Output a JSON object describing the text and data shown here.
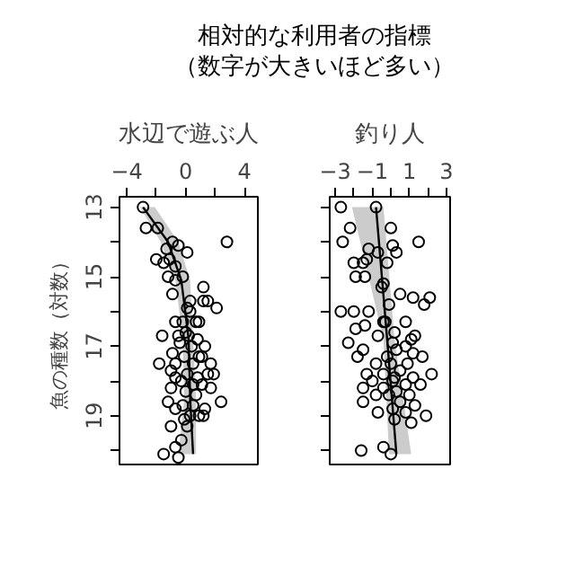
{
  "chart_data": [
    {
      "type": "other",
      "title": "相対的な利用者の指標",
      "subtitle": "（数字が大きいほど多い）"
    },
    {
      "type": "scatter",
      "orientation": "horizontal",
      "title": "水辺で遊ぶ人",
      "ylabel": "魚の種数（対数）",
      "grid": false,
      "xlim": [
        -4.5,
        4.9
      ],
      "xticks": [
        -4,
        {
          "value": -2,
          "label": null
        },
        0,
        {
          "value": 2,
          "label": null
        },
        4
      ],
      "ylim": [
        20.4,
        12.7
      ],
      "yticks": [
        13,
        {
          "value": 14,
          "label": null
        },
        15,
        {
          "value": 16,
          "label": null
        },
        17,
        {
          "value": 18,
          "label": null
        },
        19,
        {
          "value": 20,
          "label": null
        }
      ],
      "series": [
        {
          "type": "scatter",
          "marker": "circle",
          "color": "#000000",
          "values": [
            -2.9,
            -2.7,
            -1.9,
            -0.9,
            2.8,
            -1.3,
            -0.5,
            0.1,
            -2.0,
            -1.1,
            -1.5,
            -0.7,
            -0.2,
            -1.2,
            -0.7,
            1.2,
            -0.9,
            0.3,
            1.2,
            1.5,
            0.1,
            2.1,
            0.3,
            -0.2,
            0.7,
            -0.7,
            0.9,
            0,
            -0.5,
            -1.6,
            0.2,
            0.8,
            -0.4,
            0.4,
            1.3,
            -0.9,
            1.1,
            -0.1,
            0.9,
            -1.8,
            -0.7,
            0.5,
            1.7,
            -1.0,
            0.1,
            1.5,
            -0.7,
            1.9,
            0.8,
            -0.3,
            0.5,
            1.1,
            -1.0,
            1.7,
            0,
            0.7,
            2.4,
            -1.2,
            -0.2,
            0.5,
            1.3,
            -0.7,
            0.3,
            0.9,
            -0.1,
            1.2,
            -1.0,
            0.1,
            -0.3,
            -0.7,
            -1.5,
            -0.5
          ],
          "x": [
            13.0,
            13.6,
            13.6,
            14.0,
            14.0,
            14.2,
            14.1,
            14.3,
            14.5,
            14.5,
            14.6,
            14.7,
            15.0,
            15.0,
            15.1,
            15.3,
            15.5,
            15.7,
            15.7,
            15.7,
            15.9,
            15.9,
            16.0,
            16.3,
            16.3,
            16.3,
            16.3,
            16.6,
            16.7,
            16.7,
            16.7,
            16.8,
            16.9,
            17.0,
            17.0,
            17.2,
            17.3,
            17.3,
            17.3,
            17.5,
            17.5,
            17.5,
            17.5,
            17.7,
            17.8,
            17.8,
            17.9,
            17.8,
            17.9,
            18.0,
            18.1,
            18.1,
            18.2,
            18.2,
            18.3,
            18.4,
            18.6,
            18.6,
            18.7,
            18.7,
            18.8,
            18.8,
            19.0,
            19.0,
            19.1,
            19.0,
            19.3,
            19.3,
            19.7,
            19.9,
            20.1,
            20.2
          ]
        },
        {
          "type": "line",
          "marker": "none",
          "color": "#000000",
          "x": [
            13.0,
            14.0,
            15.1,
            16.8,
            18.5,
            20.1
          ],
          "values": [
            -2.9,
            -1.2,
            -0.3,
            0.2,
            0.3,
            0.5
          ],
          "lower": [
            -3.1,
            -1.7,
            -0.7,
            -0.2,
            -0.1,
            -0.5
          ],
          "upper": [
            -2.1,
            -0.5,
            0.3,
            0.5,
            0.7,
            0.7
          ]
        }
      ]
    },
    {
      "type": "scatter",
      "orientation": "horizontal",
      "title": "釣り人",
      "grid": false,
      "tick_labels": "x",
      "xlim": [
        -3.3,
        3.2
      ],
      "xticks": [
        -3,
        {
          "value": -2,
          "label": null
        },
        -1,
        {
          "value": 0,
          "label": null
        },
        1,
        {
          "value": 2,
          "label": null
        },
        3
      ],
      "ylim": [
        20.4,
        12.7
      ],
      "yticks": [
        13,
        {
          "value": 14,
          "label": null
        },
        15,
        {
          "value": 16,
          "label": null
        },
        17,
        {
          "value": 18,
          "label": null
        },
        19,
        {
          "value": 20,
          "label": null
        }
      ],
      "series": [
        {
          "type": "scatter",
          "marker": "circle",
          "color": "#000000",
          "values": [
            -2.7,
            -0.8,
            -2.2,
            -2.6,
            0.0,
            1.5,
            0.1,
            -1.2,
            -0.7,
            0.3,
            -1.3,
            -2.0,
            -1.5,
            -0.2,
            -1.9,
            -1.4,
            -0.4,
            -0.5,
            0.5,
            2.1,
            1.2,
            1.8,
            -0.1,
            -2.7,
            -2.0,
            -1.2,
            -0.4,
            -0.3,
            0.8,
            -1.4,
            -1.9,
            0.2,
            -0.7,
            1.3,
            -2.3,
            0.1,
            1.1,
            0.8,
            -1.5,
            0.3,
            1.2,
            -0.2,
            1.7,
            -1.8,
            -0.8,
            0.0,
            0.9,
            0.5,
            -1.3,
            -0.4,
            2.2,
            0.2,
            1.2,
            -1.0,
            0.1,
            0.8,
            1.6,
            -1.5,
            -0.4,
            0.3,
            -0.8,
            1.0,
            -0.1,
            -1.5,
            0.5,
            1.3,
            0.1,
            -0.7,
            0.8,
            1.9,
            0.2,
            1.1,
            -0.4,
            -1.6,
            0.0
          ],
          "x": [
            13.0,
            13.0,
            13.6,
            14.0,
            13.6,
            14.0,
            14.1,
            14.2,
            14.3,
            14.3,
            14.5,
            14.6,
            14.6,
            14.6,
            15.0,
            15.0,
            15.2,
            15.3,
            15.5,
            15.6,
            15.6,
            15.8,
            15.8,
            16.0,
            16.0,
            16.0,
            16.3,
            16.3,
            16.3,
            16.4,
            16.5,
            16.6,
            16.7,
            16.7,
            16.9,
            16.9,
            16.8,
            17.0,
            17.1,
            17.1,
            17.2,
            17.3,
            17.3,
            17.3,
            17.5,
            17.5,
            17.5,
            17.7,
            17.8,
            17.8,
            17.8,
            17.9,
            17.9,
            18.0,
            18.0,
            18.1,
            18.1,
            18.2,
            18.2,
            18.3,
            18.4,
            18.4,
            18.4,
            18.6,
            18.6,
            18.7,
            18.8,
            18.9,
            18.9,
            19.0,
            19.1,
            19.2,
            19.9,
            20.0,
            20.1
          ]
        },
        {
          "type": "line",
          "marker": "none",
          "color": "#000000",
          "x": [
            13.0,
            16.8,
            20.1
          ],
          "values": [
            -0.8,
            -0.2,
            0.3
          ],
          "lower": [
            -2.1,
            -0.4,
            -0.1
          ],
          "upper": [
            -0.4,
            0.2,
            1.1
          ]
        }
      ]
    }
  ]
}
